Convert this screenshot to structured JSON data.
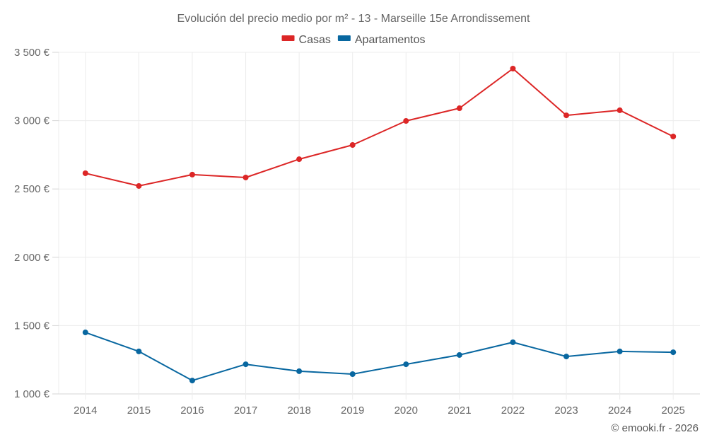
{
  "chart_data": {
    "type": "line",
    "title": "Evolución del precio medio por m² - 13 - Marseille 15e Arrondissement",
    "xlabel": "",
    "ylabel": "",
    "categories": [
      "2014",
      "2015",
      "2016",
      "2017",
      "2018",
      "2019",
      "2020",
      "2021",
      "2022",
      "2023",
      "2024",
      "2025"
    ],
    "ylim": [
      1000,
      3500
    ],
    "yticks": [
      1000,
      1500,
      2000,
      2500,
      3000,
      3500
    ],
    "ytick_labels": [
      "1 000 €",
      "1 500 €",
      "2 000 €",
      "2 500 €",
      "3 000 €",
      "3 500 €"
    ],
    "grid": true,
    "legend_position": "top-center",
    "series": [
      {
        "name": "Casas",
        "color": "#dc2626",
        "values": [
          2615,
          2522,
          2605,
          2584,
          2718,
          2822,
          2998,
          3091,
          3381,
          3039,
          3076,
          2884
        ]
      },
      {
        "name": "Apartamentos",
        "color": "#0867a0",
        "values": [
          1450,
          1311,
          1098,
          1217,
          1166,
          1145,
          1217,
          1285,
          1378,
          1274,
          1311,
          1305
        ]
      }
    ]
  },
  "credit": "© emooki.fr - 2026"
}
